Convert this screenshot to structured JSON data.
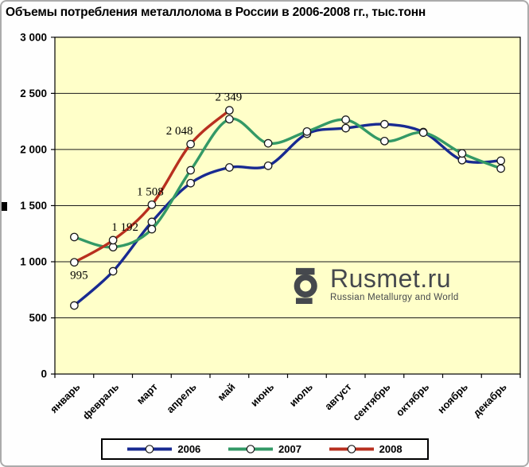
{
  "title": "Объемы потребления металлолома в России в 2006-2008 гг., тыс.тонн",
  "chart_data": {
    "type": "line",
    "title": "Объемы потребления металлолома в России в 2006-2008 гг., тыс.тонн",
    "categories": [
      "январь",
      "февраль",
      "март",
      "апрель",
      "май",
      "июнь",
      "июль",
      "август",
      "сентябрь",
      "октябрь",
      "ноябрь",
      "декабрь"
    ],
    "series": [
      {
        "name": "2006",
        "color": "#182a91",
        "values": [
          610,
          915,
          1355,
          1700,
          1840,
          1855,
          2140,
          2190,
          2225,
          2155,
          1905,
          1900
        ]
      },
      {
        "name": "2007",
        "color": "#339966",
        "values": [
          1220,
          1130,
          1290,
          1815,
          2270,
          2055,
          2160,
          2265,
          2075,
          2150,
          1965,
          1830
        ]
      },
      {
        "name": "2008",
        "color": "#b8301f",
        "values": [
          995,
          1192,
          1508,
          2048,
          2349
        ],
        "data_labels": [
          "995",
          "1 192",
          "1 508",
          "2 048",
          "2 349"
        ]
      }
    ],
    "ylim": [
      0,
      3000
    ],
    "ytick_step": 500,
    "ytick_labels": [
      "0",
      "500",
      "1 000",
      "1 500",
      "2 000",
      "2 500",
      "3 000"
    ],
    "grid": true,
    "legend_position": "bottom",
    "plot_bg": "#ffffc9",
    "marker": {
      "fill": "#ffffff",
      "stroke": "#1a1a1a"
    }
  },
  "logo": {
    "name": "Rusmet.ru",
    "tagline": "Russian Metallurgy and World"
  }
}
